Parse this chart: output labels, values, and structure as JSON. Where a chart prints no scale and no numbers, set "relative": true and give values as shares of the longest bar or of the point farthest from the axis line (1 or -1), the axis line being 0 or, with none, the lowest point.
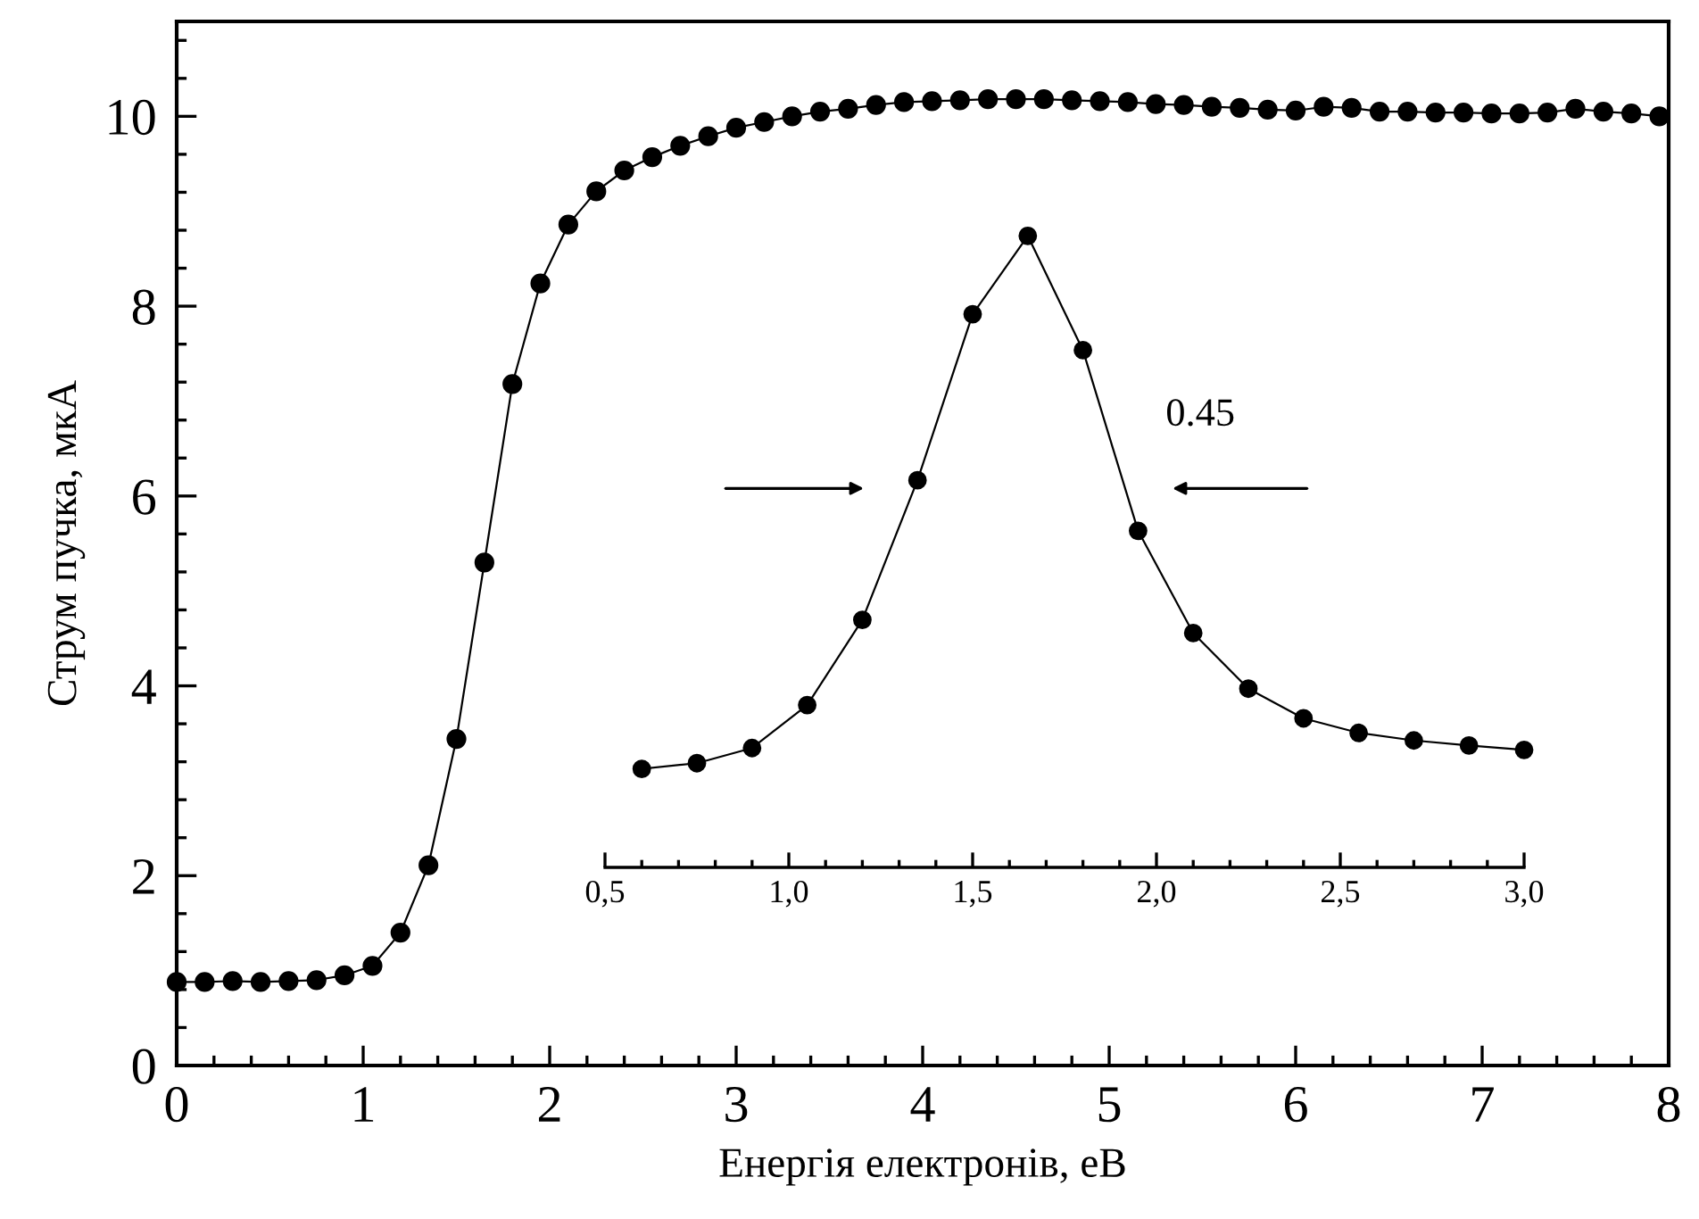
{
  "chart_data": [
    {
      "type": "line",
      "xlabel": "Енергія електронів, еВ",
      "ylabel": "Струм пучка, мкА",
      "xlim": [
        0,
        8
      ],
      "ylim": [
        0,
        11
      ],
      "xticks": [
        0,
        1,
        2,
        3,
        4,
        5,
        6,
        7,
        8
      ],
      "yticks": [
        0,
        2,
        4,
        6,
        8,
        10
      ],
      "marker": "circle",
      "line_style": "solid",
      "x": [
        0,
        0.15,
        0.3,
        0.45,
        0.6,
        0.75,
        0.9,
        1.05,
        1.2,
        1.35,
        1.5,
        1.65,
        1.8,
        1.95,
        2.1,
        2.25,
        2.4,
        2.55,
        2.7,
        2.85,
        3.0,
        3.15,
        3.3,
        3.45,
        3.6,
        3.75,
        3.9,
        4.05,
        4.2,
        4.35,
        4.5,
        4.65,
        4.8,
        4.95,
        5.1,
        5.25,
        5.4,
        5.55,
        5.7,
        5.85,
        6.0,
        6.15,
        6.3,
        6.45,
        6.6,
        6.75,
        6.9,
        7.05,
        7.2,
        7.35,
        7.5,
        7.65,
        7.8,
        7.95
      ],
      "series": [
        {
          "color": "#000000",
          "values": [
            0.88,
            0.88,
            0.89,
            0.88,
            0.89,
            0.9,
            0.95,
            1.05,
            1.4,
            2.11,
            3.44,
            5.3,
            7.18,
            8.24,
            8.86,
            9.21,
            9.43,
            9.57,
            9.69,
            9.79,
            9.88,
            9.94,
            10.0,
            10.05,
            10.08,
            10.12,
            10.15,
            10.16,
            10.17,
            10.18,
            10.18,
            10.18,
            10.17,
            10.16,
            10.15,
            10.13,
            10.12,
            10.1,
            10.09,
            10.07,
            10.06,
            10.1,
            10.09,
            10.05,
            10.05,
            10.04,
            10.04,
            10.03,
            10.03,
            10.04,
            10.08,
            10.05,
            10.03,
            10.0
          ]
        }
      ]
    },
    {
      "type": "line",
      "relative": true,
      "tick_labels": "x",
      "xlim": [
        0.5,
        3.0
      ],
      "xticks": [
        {
          "value": 0.5,
          "label": "0,5"
        },
        {
          "value": 1.0,
          "label": "1,0"
        },
        {
          "value": 1.5,
          "label": "1,5"
        },
        {
          "value": 2.0,
          "label": "2,0"
        },
        {
          "value": 2.5,
          "label": "2,5"
        },
        {
          "value": 3.0,
          "label": "3,0"
        }
      ],
      "marker": "circle",
      "line_style": "solid",
      "annotations": [
        "0.45"
      ],
      "x": [
        0.6,
        0.75,
        0.9,
        1.05,
        1.2,
        1.35,
        1.5,
        1.65,
        1.8,
        1.95,
        2.1,
        2.25,
        2.4,
        2.55,
        2.7,
        2.85,
        3.0
      ],
      "series": [
        {
          "color": "#000000",
          "values": [
            0.156,
            0.165,
            0.189,
            0.257,
            0.392,
            0.613,
            0.876,
            1.0,
            0.819,
            0.533,
            0.371,
            0.283,
            0.236,
            0.213,
            0.201,
            0.193,
            0.186
          ]
        }
      ]
    }
  ]
}
